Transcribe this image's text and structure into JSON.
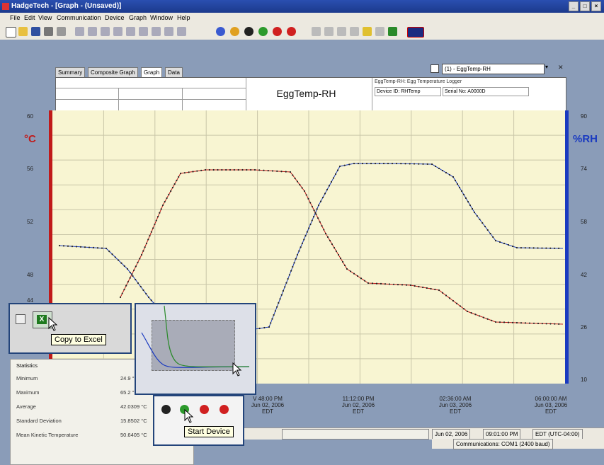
{
  "window": {
    "title": "HadgeTech - [Graph - (Unsaved)]"
  },
  "menu": [
    "File",
    "Edit",
    "View",
    "Communication",
    "Device",
    "Graph",
    "Window",
    "Help"
  ],
  "tabs": [
    "Summary",
    "Composite Graph",
    "Graph",
    "Data"
  ],
  "device_selector": {
    "value": "(1) - EggTemp-RH"
  },
  "header": {
    "graph_title": "EggTemp-RH",
    "logger_desc": "EggTemp-RH: Egg Temperature Logger",
    "device_id": "Device ID: RHTemp",
    "serial": "Serial No: A0000D"
  },
  "axes": {
    "left_unit": "°C",
    "right_unit": "%RH",
    "left_ticks": [
      "60",
      "56",
      "52",
      "48",
      "44"
    ],
    "right_ticks": [
      "90",
      "74",
      "58",
      "42",
      "26",
      "10"
    ]
  },
  "x_labels": [
    {
      "time": "V 48:00 PM",
      "date": "Jun 02, 2006",
      "tz": "EDT"
    },
    {
      "time": "11:12:00 PM",
      "date": "Jun 02, 2006",
      "tz": "EDT"
    },
    {
      "time": "02:36:00 AM",
      "date": "Jun 03, 2006",
      "tz": "EDT"
    },
    {
      "time": "06:00:00 AM",
      "date": "Jun 03, 2006",
      "tz": "EDT"
    }
  ],
  "stats": {
    "title": "Statistics",
    "rows": [
      {
        "label": "Minimum",
        "value": "24.9 °C"
      },
      {
        "label": "Maximum",
        "value": "65.2 °C"
      },
      {
        "label": "Average",
        "value": "42.0309 °C"
      },
      {
        "label": "Standard Deviation",
        "value": "15.8502 °C"
      },
      {
        "label": "Mean Kinetic Temperature",
        "value": "50.6405 °C"
      }
    ]
  },
  "tooltips": {
    "copy": "Copy to Excel",
    "start": "Start Device"
  },
  "status": {
    "date": "Jun 02, 2006",
    "time": "09:01:00 PM",
    "tz": "EDT (UTC-04:00)",
    "comm": "Communications: COM1 (2400 baud)"
  },
  "colors": {
    "red": "#c01a1a",
    "blue": "#1a3ac0",
    "plot_bg": "#f8f5d2"
  }
}
